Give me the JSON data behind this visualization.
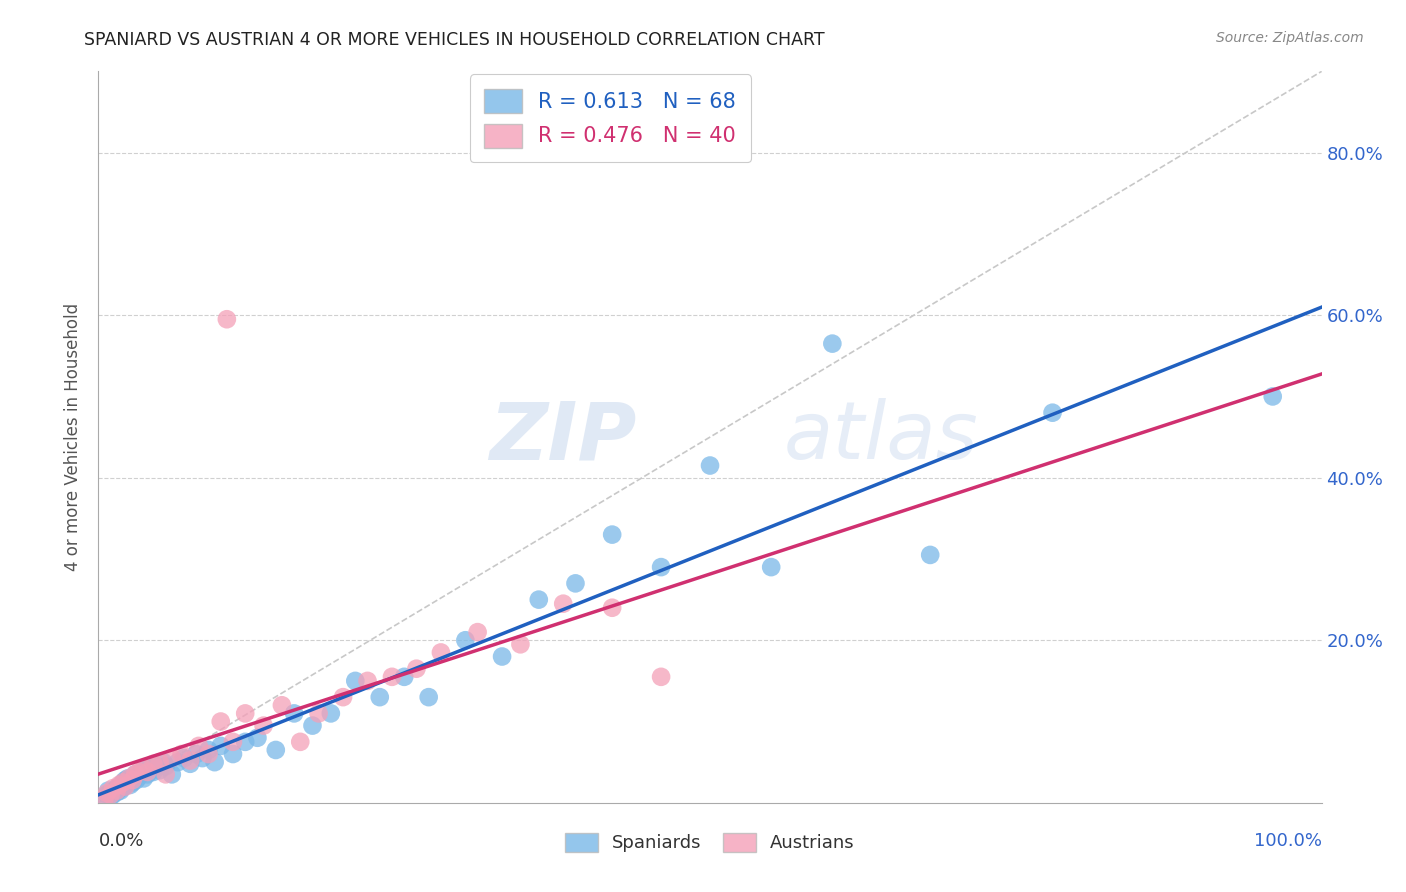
{
  "title": "SPANIARD VS AUSTRIAN 4 OR MORE VEHICLES IN HOUSEHOLD CORRELATION CHART",
  "source": "Source: ZipAtlas.com",
  "ylabel": "4 or more Vehicles in Household",
  "spaniard_color": "#7ab8e8",
  "austrian_color": "#f4a0b8",
  "spaniard_line_color": "#2060c0",
  "austrian_line_color": "#d03070",
  "diagonal_color": "#c8c8c8",
  "watermark_zip": "ZIP",
  "watermark_atlas": "atlas",
  "spaniard_R": 0.613,
  "austrian_R": 0.476,
  "spaniard_N": 68,
  "austrian_N": 40,
  "spaniard_x": [
    0.005,
    0.007,
    0.008,
    0.01,
    0.01,
    0.012,
    0.013,
    0.015,
    0.015,
    0.017,
    0.018,
    0.019,
    0.02,
    0.02,
    0.021,
    0.022,
    0.022,
    0.023,
    0.024,
    0.025,
    0.026,
    0.027,
    0.028,
    0.03,
    0.031,
    0.033,
    0.035,
    0.037,
    0.038,
    0.04,
    0.042,
    0.045,
    0.047,
    0.05,
    0.053,
    0.055,
    0.06,
    0.065,
    0.07,
    0.075,
    0.08,
    0.085,
    0.09,
    0.095,
    0.1,
    0.11,
    0.12,
    0.13,
    0.145,
    0.16,
    0.175,
    0.19,
    0.21,
    0.23,
    0.25,
    0.27,
    0.3,
    0.33,
    0.36,
    0.39,
    0.42,
    0.46,
    0.5,
    0.55,
    0.6,
    0.68,
    0.78,
    0.96
  ],
  "spaniard_y": [
    0.005,
    0.01,
    0.015,
    0.008,
    0.012,
    0.01,
    0.015,
    0.013,
    0.018,
    0.02,
    0.015,
    0.018,
    0.022,
    0.025,
    0.02,
    0.022,
    0.028,
    0.025,
    0.03,
    0.028,
    0.022,
    0.03,
    0.025,
    0.035,
    0.028,
    0.032,
    0.038,
    0.03,
    0.04,
    0.035,
    0.042,
    0.038,
    0.045,
    0.04,
    0.05,
    0.045,
    0.035,
    0.05,
    0.055,
    0.048,
    0.06,
    0.055,
    0.065,
    0.05,
    0.07,
    0.06,
    0.075,
    0.08,
    0.065,
    0.11,
    0.095,
    0.11,
    0.15,
    0.13,
    0.155,
    0.13,
    0.2,
    0.18,
    0.25,
    0.27,
    0.33,
    0.29,
    0.415,
    0.29,
    0.565,
    0.305,
    0.48,
    0.5
  ],
  "austrian_x": [
    0.005,
    0.007,
    0.01,
    0.012,
    0.015,
    0.017,
    0.02,
    0.022,
    0.025,
    0.028,
    0.03,
    0.033,
    0.037,
    0.04,
    0.045,
    0.05,
    0.055,
    0.06,
    0.068,
    0.075,
    0.082,
    0.09,
    0.1,
    0.11,
    0.12,
    0.135,
    0.15,
    0.165,
    0.18,
    0.2,
    0.22,
    0.24,
    0.26,
    0.28,
    0.31,
    0.345,
    0.38,
    0.42,
    0.46,
    0.105
  ],
  "austrian_y": [
    0.005,
    0.012,
    0.01,
    0.018,
    0.015,
    0.022,
    0.025,
    0.02,
    0.03,
    0.028,
    0.035,
    0.038,
    0.042,
    0.038,
    0.048,
    0.05,
    0.035,
    0.055,
    0.06,
    0.052,
    0.07,
    0.06,
    0.1,
    0.075,
    0.11,
    0.095,
    0.12,
    0.075,
    0.11,
    0.13,
    0.15,
    0.155,
    0.165,
    0.185,
    0.21,
    0.195,
    0.245,
    0.24,
    0.155,
    0.595
  ],
  "xlim": [
    0,
    1.0
  ],
  "ylim": [
    0,
    0.9
  ],
  "yticks": [
    0.0,
    0.2,
    0.4,
    0.6,
    0.8
  ],
  "ytick_labels_right": [
    "",
    "20.0%",
    "40.0%",
    "60.0%",
    "80.0%"
  ],
  "background_color": "#ffffff",
  "grid_color": "#d0d0d0"
}
